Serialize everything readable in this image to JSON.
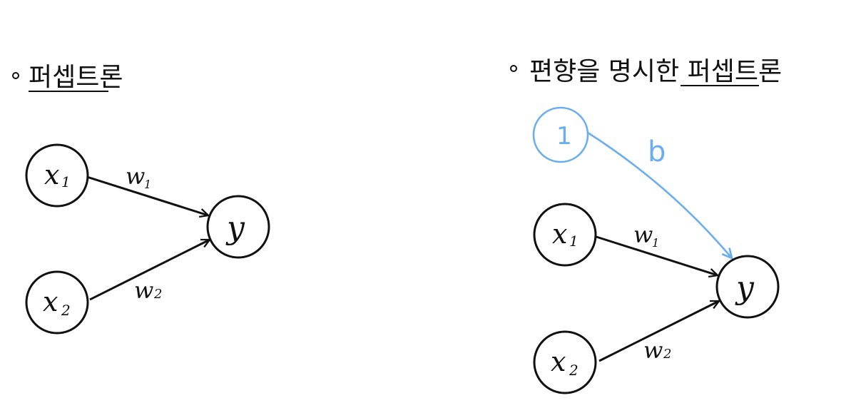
{
  "left_diagram": {
    "title": "퍼셉트론",
    "inputs": [
      {
        "label": "x",
        "subscript": "1",
        "weight": "w",
        "weight_subscript": "1"
      },
      {
        "label": "x",
        "subscript": "2",
        "weight": "w",
        "weight_subscript": "2"
      }
    ],
    "output": {
      "label": "y"
    }
  },
  "right_diagram": {
    "title": "편향을 명시한 퍼셉트론",
    "bias_node": {
      "label": "1"
    },
    "bias_weight": {
      "label": "b"
    },
    "inputs": [
      {
        "label": "x",
        "subscript": "1",
        "weight": "w",
        "weight_subscript": "1"
      },
      {
        "label": "x",
        "subscript": "2",
        "weight": "w",
        "weight_subscript": "2"
      }
    ],
    "output": {
      "label": "y"
    }
  },
  "colors": {
    "ink": "#111111",
    "bias": "#6aaef0"
  }
}
